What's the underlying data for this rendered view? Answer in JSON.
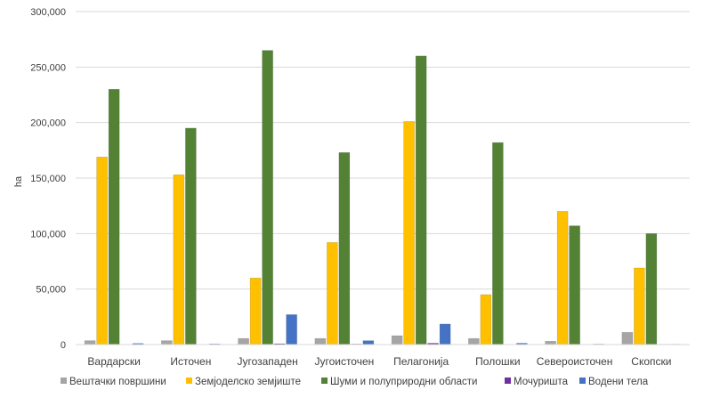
{
  "chart_data": {
    "type": "bar",
    "ylabel": "ha",
    "ylim": [
      0,
      300000
    ],
    "yticks": [
      "0",
      "50,000",
      "100,000",
      "150,000",
      "200,000",
      "250,000",
      "300,000"
    ],
    "ytick_values": [
      0,
      50000,
      100000,
      150000,
      200000,
      250000,
      300000
    ],
    "grid": true,
    "legend_position": "bottom",
    "categories": [
      "Вардарски",
      "Источен",
      "Југозападен",
      "Југоисточен",
      "Пелагонија",
      "Полошки",
      "Североисточен",
      "Скопски"
    ],
    "series": [
      {
        "name": "Вештачки површини",
        "color": "#a5a5a5",
        "values": [
          3500,
          3500,
          5500,
          5500,
          8000,
          5500,
          3000,
          11000
        ]
      },
      {
        "name": "Земјоделско земјиште",
        "color": "#ffc000",
        "values": [
          169000,
          153000,
          60000,
          92000,
          201000,
          45000,
          120000,
          69000
        ]
      },
      {
        "name": "Шуми и полуприродни области",
        "color": "#548235",
        "values": [
          230000,
          195000,
          265000,
          173000,
          260000,
          182000,
          107000,
          100000
        ]
      },
      {
        "name": "Мочуришта",
        "color": "#7030a0",
        "values": [
          0,
          0,
          800,
          500,
          1200,
          0,
          0,
          300
        ]
      },
      {
        "name": "Водени тела",
        "color": "#4472c4",
        "values": [
          1000,
          600,
          27000,
          3500,
          18500,
          1200,
          500,
          400
        ]
      }
    ]
  }
}
